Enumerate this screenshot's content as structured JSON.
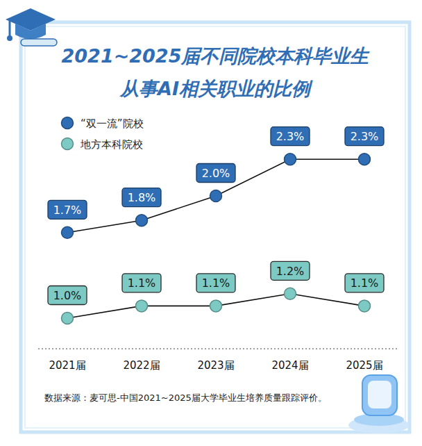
{
  "chart_data": {
    "type": "line",
    "title": "2021~2025届不同院校本科毕业生从事AI相关职业的比例",
    "categories": [
      "2021届",
      "2022届",
      "2023届",
      "2024届",
      "2025届"
    ],
    "series": [
      {
        "name": "“双一流”院校",
        "color": "#2f6db5",
        "marker": "circle",
        "values": [
          1.7,
          1.8,
          2.0,
          2.3,
          2.3
        ],
        "value_labels": [
          "1.7%",
          "1.8%",
          "2.0%",
          "2.3%",
          "2.3%"
        ]
      },
      {
        "name": "地方本科院校",
        "color": "#7ccac3",
        "marker": "circle",
        "values": [
          1.0,
          1.1,
          1.1,
          1.2,
          1.1
        ],
        "value_labels": [
          "1.0%",
          "1.1%",
          "1.1%",
          "1.2%",
          "1.1%"
        ]
      }
    ],
    "ylim": [
      0.75,
      2.5
    ],
    "tick_labels": "x",
    "data_labels": true,
    "grid": false,
    "legend": "top-left",
    "source": "数据来源：麦可思-中国2021~2025届大学毕业生培养质量跟踪评价。"
  }
}
